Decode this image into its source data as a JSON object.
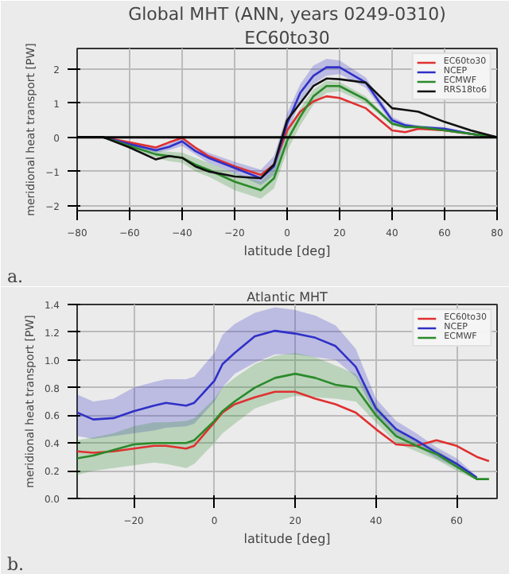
{
  "chart_data": [
    {
      "type": "line",
      "title": "Global MHT (ANN, years 0249-0310)",
      "subtitle": "EC60to30",
      "xlabel": "latitude [deg]",
      "ylabel": "meridional heat transport [PW]",
      "x": [
        -80,
        -70,
        -60,
        -50,
        -45,
        -40,
        -35,
        -30,
        -20,
        -10,
        -5,
        0,
        5,
        10,
        15,
        20,
        30,
        40,
        45,
        50,
        60,
        70,
        80
      ],
      "series": [
        {
          "name": "EC60to30",
          "color": "#e03030",
          "values": [
            0,
            0,
            -0.15,
            -0.3,
            -0.15,
            -0.02,
            -0.3,
            -0.55,
            -0.85,
            -1.1,
            -0.8,
            0.2,
            0.75,
            1.05,
            1.2,
            1.15,
            0.85,
            0.2,
            0.15,
            0.25,
            0.2,
            0.1,
            0
          ]
        },
        {
          "name": "NCEP",
          "color": "#3030c8",
          "values": [
            0,
            0,
            -0.2,
            -0.38,
            -0.28,
            -0.12,
            -0.4,
            -0.6,
            -0.9,
            -1.2,
            -0.85,
            0.4,
            1.3,
            1.8,
            2.05,
            2.05,
            1.6,
            0.5,
            0.35,
            0.3,
            0.25,
            0.1,
            0
          ],
          "lower": [
            0,
            0,
            -0.25,
            -0.45,
            -0.38,
            -0.25,
            -0.5,
            -0.75,
            -1.05,
            -1.4,
            -1.1,
            0.1,
            1.05,
            1.55,
            1.8,
            1.85,
            1.45,
            0.4,
            0.3,
            0.25,
            0.2,
            0.08,
            0
          ],
          "upper": [
            0,
            0,
            -0.15,
            -0.3,
            -0.18,
            0.02,
            -0.28,
            -0.45,
            -0.72,
            -0.95,
            -0.55,
            0.7,
            1.55,
            2.1,
            2.3,
            2.25,
            1.75,
            0.6,
            0.42,
            0.35,
            0.3,
            0.12,
            0
          ]
        },
        {
          "name": "ECMWF",
          "color": "#2a8a2a",
          "values": [
            0,
            0,
            -0.25,
            -0.5,
            -0.55,
            -0.6,
            -0.8,
            -0.95,
            -1.3,
            -1.55,
            -1.2,
            -0.1,
            0.6,
            1.2,
            1.5,
            1.5,
            1.1,
            0.4,
            0.3,
            0.3,
            0.2,
            0.1,
            0
          ],
          "lower": [
            0,
            0,
            -0.3,
            -0.6,
            -0.7,
            -0.75,
            -1.0,
            -1.15,
            -1.55,
            -1.8,
            -1.5,
            -0.4,
            0.35,
            0.95,
            1.3,
            1.35,
            1.0,
            0.35,
            0.25,
            0.25,
            0.17,
            0.08,
            0
          ],
          "upper": [
            0,
            0,
            -0.2,
            -0.4,
            -0.42,
            -0.45,
            -0.6,
            -0.75,
            -1.05,
            -1.3,
            -0.9,
            0.2,
            0.85,
            1.4,
            1.65,
            1.62,
            1.2,
            0.45,
            0.35,
            0.33,
            0.23,
            0.12,
            0
          ]
        },
        {
          "name": "RRS18to6",
          "color": "#111111",
          "values": [
            0,
            0,
            -0.3,
            -0.65,
            -0.55,
            -0.6,
            -0.85,
            -1.0,
            -1.15,
            -1.2,
            -0.8,
            0.5,
            1.0,
            1.5,
            1.72,
            1.7,
            1.6,
            0.85,
            0.8,
            0.75,
            0.45,
            0.2,
            0
          ]
        }
      ],
      "ref_lines": [
        {
          "axis": "y",
          "value": 0,
          "color": "#000000"
        }
      ],
      "xlim": [
        -80,
        80
      ],
      "xticks": [
        -80,
        -60,
        -40,
        -20,
        0,
        20,
        40,
        60,
        80
      ],
      "ylim": [
        -2.15,
        2.6
      ],
      "yticks": [
        -2,
        -1,
        0,
        1,
        2
      ],
      "grid": true,
      "legend": "top right",
      "annotations": [
        "a."
      ]
    },
    {
      "type": "line",
      "title": "Atlantic MHT",
      "xlabel": "latitude [deg]",
      "ylabel": "meridional heat transport [PW]",
      "x": [
        -34,
        -30,
        -25,
        -20,
        -15,
        -12,
        -7,
        -5,
        0,
        2,
        5,
        10,
        15,
        20,
        25,
        30,
        35,
        40,
        45,
        50,
        55,
        60,
        65,
        68
      ],
      "series": [
        {
          "name": "EC60to30",
          "color": "#e03030",
          "values": [
            0.34,
            0.33,
            0.34,
            0.36,
            0.38,
            0.38,
            0.36,
            0.38,
            0.55,
            0.62,
            0.68,
            0.73,
            0.77,
            0.77,
            0.72,
            0.68,
            0.62,
            0.5,
            0.39,
            0.38,
            0.42,
            0.38,
            0.3,
            0.27
          ]
        },
        {
          "name": "NCEP",
          "color": "#3030c8",
          "values": [
            0.62,
            0.57,
            0.58,
            0.63,
            0.67,
            0.69,
            0.67,
            0.69,
            0.85,
            0.97,
            1.05,
            1.17,
            1.21,
            1.19,
            1.16,
            1.1,
            0.95,
            0.65,
            0.5,
            0.42,
            0.33,
            0.25,
            0.15,
            null
          ],
          "lower": [
            0.45,
            0.43,
            0.45,
            0.47,
            0.49,
            0.51,
            0.52,
            0.54,
            0.7,
            0.8,
            0.9,
            0.98,
            1.04,
            1.04,
            1.02,
            1.0,
            0.88,
            0.6,
            0.45,
            0.38,
            0.29,
            0.22,
            0.14,
            null
          ],
          "upper": [
            0.75,
            0.7,
            0.72,
            0.8,
            0.84,
            0.86,
            0.86,
            0.88,
            1.05,
            1.18,
            1.26,
            1.34,
            1.38,
            1.36,
            1.32,
            1.25,
            1.08,
            0.72,
            0.56,
            0.47,
            0.37,
            0.29,
            0.16,
            null
          ]
        },
        {
          "name": "ECMWF",
          "color": "#2a8a2a",
          "values": [
            0.29,
            0.31,
            0.35,
            0.39,
            0.4,
            0.4,
            0.4,
            0.42,
            0.56,
            0.63,
            0.7,
            0.8,
            0.87,
            0.9,
            0.87,
            0.82,
            0.8,
            0.6,
            0.45,
            0.38,
            0.32,
            0.23,
            0.14,
            0.14
          ],
          "lower": [
            0.17,
            0.2,
            0.22,
            0.24,
            0.26,
            0.25,
            0.22,
            0.25,
            0.4,
            0.47,
            0.54,
            0.65,
            0.7,
            0.74,
            0.73,
            0.72,
            0.7,
            0.55,
            0.4,
            0.34,
            0.28,
            0.2,
            0.13,
            null
          ],
          "upper": [
            0.42,
            0.44,
            0.47,
            0.52,
            0.55,
            0.55,
            0.56,
            0.58,
            0.72,
            0.8,
            0.87,
            0.97,
            1.03,
            1.05,
            1.02,
            0.96,
            0.9,
            0.68,
            0.5,
            0.42,
            0.35,
            0.26,
            0.15,
            null
          ]
        }
      ],
      "xlim": [
        -34,
        70
      ],
      "xticks": [
        -20,
        0,
        20,
        40,
        60
      ],
      "ylim": [
        0,
        1.4
      ],
      "yticks": [
        {
          "value": 0,
          "label": "0.0"
        },
        {
          "value": 0.2,
          "label": "0.2"
        },
        {
          "value": 0.4,
          "label": "0.4"
        },
        {
          "value": 0.6,
          "label": "0.6"
        },
        {
          "value": 0.8,
          "label": "0.8"
        },
        {
          "value": 1.0,
          "label": "1.0"
        },
        {
          "value": 1.2,
          "label": "1.2"
        },
        {
          "value": 1.4,
          "label": "1.4"
        }
      ],
      "grid": true,
      "legend": "top right",
      "annotations": [
        "b."
      ]
    }
  ]
}
